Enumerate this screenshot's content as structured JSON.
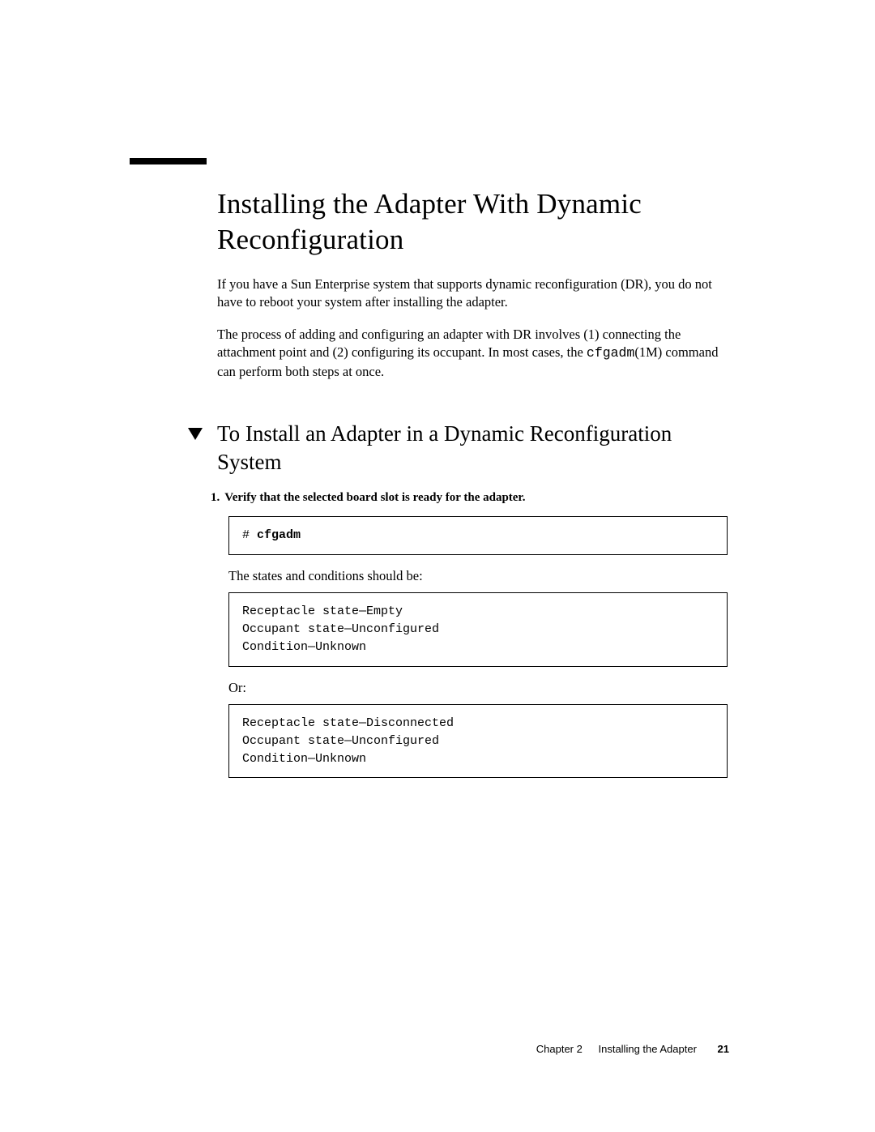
{
  "colors": {
    "text": "#000000",
    "background": "#ffffff",
    "rule": "#000000",
    "border": "#000000"
  },
  "typography": {
    "serif_family": "Georgia / Palatino style",
    "mono_family": "Courier",
    "sans_family": "Helvetica",
    "h1_fontsize_pt": 26,
    "h2_fontsize_pt": 20,
    "body_fontsize_pt": 12,
    "step_fontsize_pt": 11,
    "footer_fontsize_pt": 9
  },
  "heading": "Installing the Adapter With Dynamic Reconfiguration",
  "para1": "If you have a Sun Enterprise system that supports dynamic reconfiguration (DR), you do not have to reboot your system after installing the adapter.",
  "para2_a": "The process of adding and configuring an adapter with DR involves (1) connecting the attachment point and (2) configuring its occupant. In most cases, the ",
  "para2_cmd": "cfgadm",
  "para2_b": "(1M) command can perform both steps at once.",
  "subheading": "To Install an Adapter in a Dynamic Reconfiguration System",
  "step1_num": "1.",
  "step1_text": "Verify that the selected board slot is ready for the adapter.",
  "code1_prompt": "# ",
  "code1_cmd": "cfgadm",
  "text_states": "The states and conditions should be:",
  "code2": "Receptacle state—Empty\nOccupant state—Unconfigured\nCondition—Unknown",
  "text_or": "Or:",
  "code3": "Receptacle state—Disconnected\nOccupant state—Unconfigured\nCondition—Unknown",
  "footer": {
    "chapter": "Chapter 2",
    "title": "Installing the Adapter",
    "page": "21"
  }
}
